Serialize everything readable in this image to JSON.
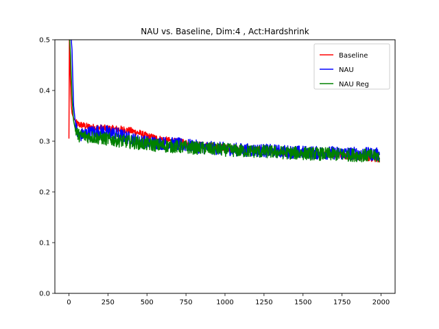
{
  "chart_data": {
    "type": "line",
    "title": "NAU vs. Baseline, Dim:4 , Act:Hardshrink",
    "xlabel": "",
    "ylabel": "",
    "xlim": [
      -90,
      2090
    ],
    "ylim": [
      0.0,
      0.5
    ],
    "x_ticks": [
      0,
      250,
      500,
      750,
      1000,
      1250,
      1500,
      1750,
      2000
    ],
    "y_ticks": [
      0.0,
      0.1,
      0.2,
      0.3,
      0.4,
      0.5
    ],
    "x_tick_labels": [
      "0",
      "250",
      "500",
      "750",
      "1000",
      "1250",
      "1500",
      "1750",
      "2000"
    ],
    "y_tick_labels": [
      "0.0",
      "0.1",
      "0.2",
      "0.3",
      "0.4",
      "0.5"
    ],
    "grid": false,
    "legend_position": "top-right",
    "series": [
      {
        "name": "Baseline",
        "color": "#ff0000",
        "x": [
          0,
          3,
          6,
          10,
          15,
          20,
          30,
          45,
          60,
          80,
          100,
          130,
          160,
          200,
          250,
          300,
          350,
          400,
          450,
          500,
          600,
          700,
          800,
          900,
          1000,
          1100,
          1200,
          1300,
          1400,
          1500,
          1600,
          1700,
          1800,
          1900,
          1990
        ],
        "y": [
          0.305,
          0.52,
          0.47,
          0.41,
          0.37,
          0.355,
          0.345,
          0.336,
          0.333,
          0.332,
          0.33,
          0.328,
          0.327,
          0.326,
          0.325,
          0.324,
          0.323,
          0.32,
          0.316,
          0.31,
          0.303,
          0.298,
          0.294,
          0.29,
          0.287,
          0.284,
          0.282,
          0.28,
          0.278,
          0.276,
          0.275,
          0.273,
          0.271,
          0.268,
          0.265
        ]
      },
      {
        "name": "NAU",
        "color": "#0000ff",
        "x": [
          10,
          15,
          20,
          25,
          30,
          40,
          50,
          60,
          80,
          100,
          150,
          200,
          250,
          300,
          350,
          400,
          450,
          500,
          600,
          700,
          800,
          900,
          1000,
          1100,
          1200,
          1300,
          1400,
          1500,
          1600,
          1700,
          1800,
          1900,
          1990
        ],
        "y": [
          0.52,
          0.5,
          0.48,
          0.42,
          0.37,
          0.34,
          0.32,
          0.31,
          0.312,
          0.315,
          0.318,
          0.32,
          0.318,
          0.315,
          0.31,
          0.305,
          0.3,
          0.298,
          0.296,
          0.294,
          0.29,
          0.287,
          0.285,
          0.283,
          0.282,
          0.281,
          0.279,
          0.278,
          0.277,
          0.277,
          0.276,
          0.275,
          0.274
        ]
      },
      {
        "name": "NAU Reg",
        "color": "#008000",
        "x": [
          5,
          10,
          15,
          20,
          25,
          30,
          40,
          50,
          60,
          80,
          100,
          150,
          200,
          250,
          300,
          350,
          400,
          450,
          500,
          600,
          700,
          800,
          900,
          1000,
          1100,
          1200,
          1300,
          1400,
          1500,
          1600,
          1700,
          1800,
          1900,
          1990
        ],
        "y": [
          0.5,
          0.47,
          0.43,
          0.39,
          0.36,
          0.34,
          0.325,
          0.318,
          0.312,
          0.31,
          0.31,
          0.308,
          0.306,
          0.304,
          0.302,
          0.3,
          0.298,
          0.296,
          0.294,
          0.291,
          0.289,
          0.287,
          0.285,
          0.283,
          0.281,
          0.28,
          0.279,
          0.277,
          0.276,
          0.275,
          0.274,
          0.273,
          0.272,
          0.27
        ]
      }
    ]
  }
}
